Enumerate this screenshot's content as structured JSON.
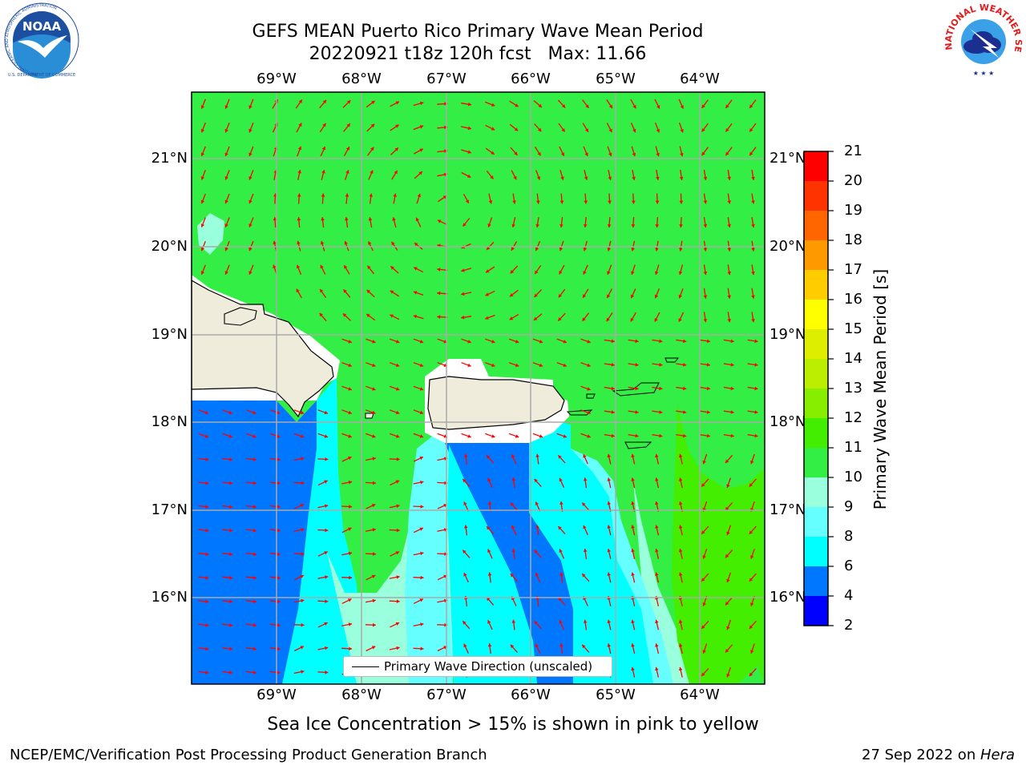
{
  "title": {
    "line1": "GEFS MEAN Puerto Rico Primary Wave Mean Period",
    "line2": "20220921 t18z 120h fcst   Max: 11.66"
  },
  "logos": {
    "noaa": "NOAA",
    "noaa_ring": "NATIONAL OCEANIC AND ATMOSPHERIC ADMINISTRATION",
    "noaa_bottom": "U.S. DEPARTMENT OF COMMERCE",
    "nws_ring": "NATIONAL WEATHER SERVICE"
  },
  "map": {
    "lon_labels": [
      "69°W",
      "68°W",
      "67°W",
      "66°W",
      "65°W",
      "64°W"
    ],
    "lat_labels": [
      "21°N",
      "20°N",
      "19°N",
      "18°N",
      "17°N",
      "16°N"
    ],
    "legend_label": "Primary Wave Direction (unscaled)",
    "arrow_color": "#ff0000",
    "land_color": "#efecdc"
  },
  "colorbar": {
    "title": "Primary Wave Mean Period [s]",
    "tick_labels": [
      "21",
      "20",
      "19",
      "18",
      "17",
      "16",
      "15",
      "14",
      "13",
      "12",
      "11",
      "10",
      "9",
      "8",
      "6",
      "4",
      "2"
    ],
    "colors": [
      "#ff0000",
      "#ff3300",
      "#ff6600",
      "#ff9900",
      "#ffcc00",
      "#ffff00",
      "#ddee00",
      "#bbee00",
      "#88ee00",
      "#44ee00",
      "#33ee44",
      "#99ffdd",
      "#66ffff",
      "#00ffff",
      "#0077ff",
      "#0000ff"
    ]
  },
  "subtitle": "Sea Ice Concentration > 15% is shown in pink to yellow",
  "footer": {
    "left": "NCEP/EMC/Verification Post Processing Product Generation Branch",
    "right_date": "27 Sep 2022 on ",
    "right_host": "Hera"
  }
}
